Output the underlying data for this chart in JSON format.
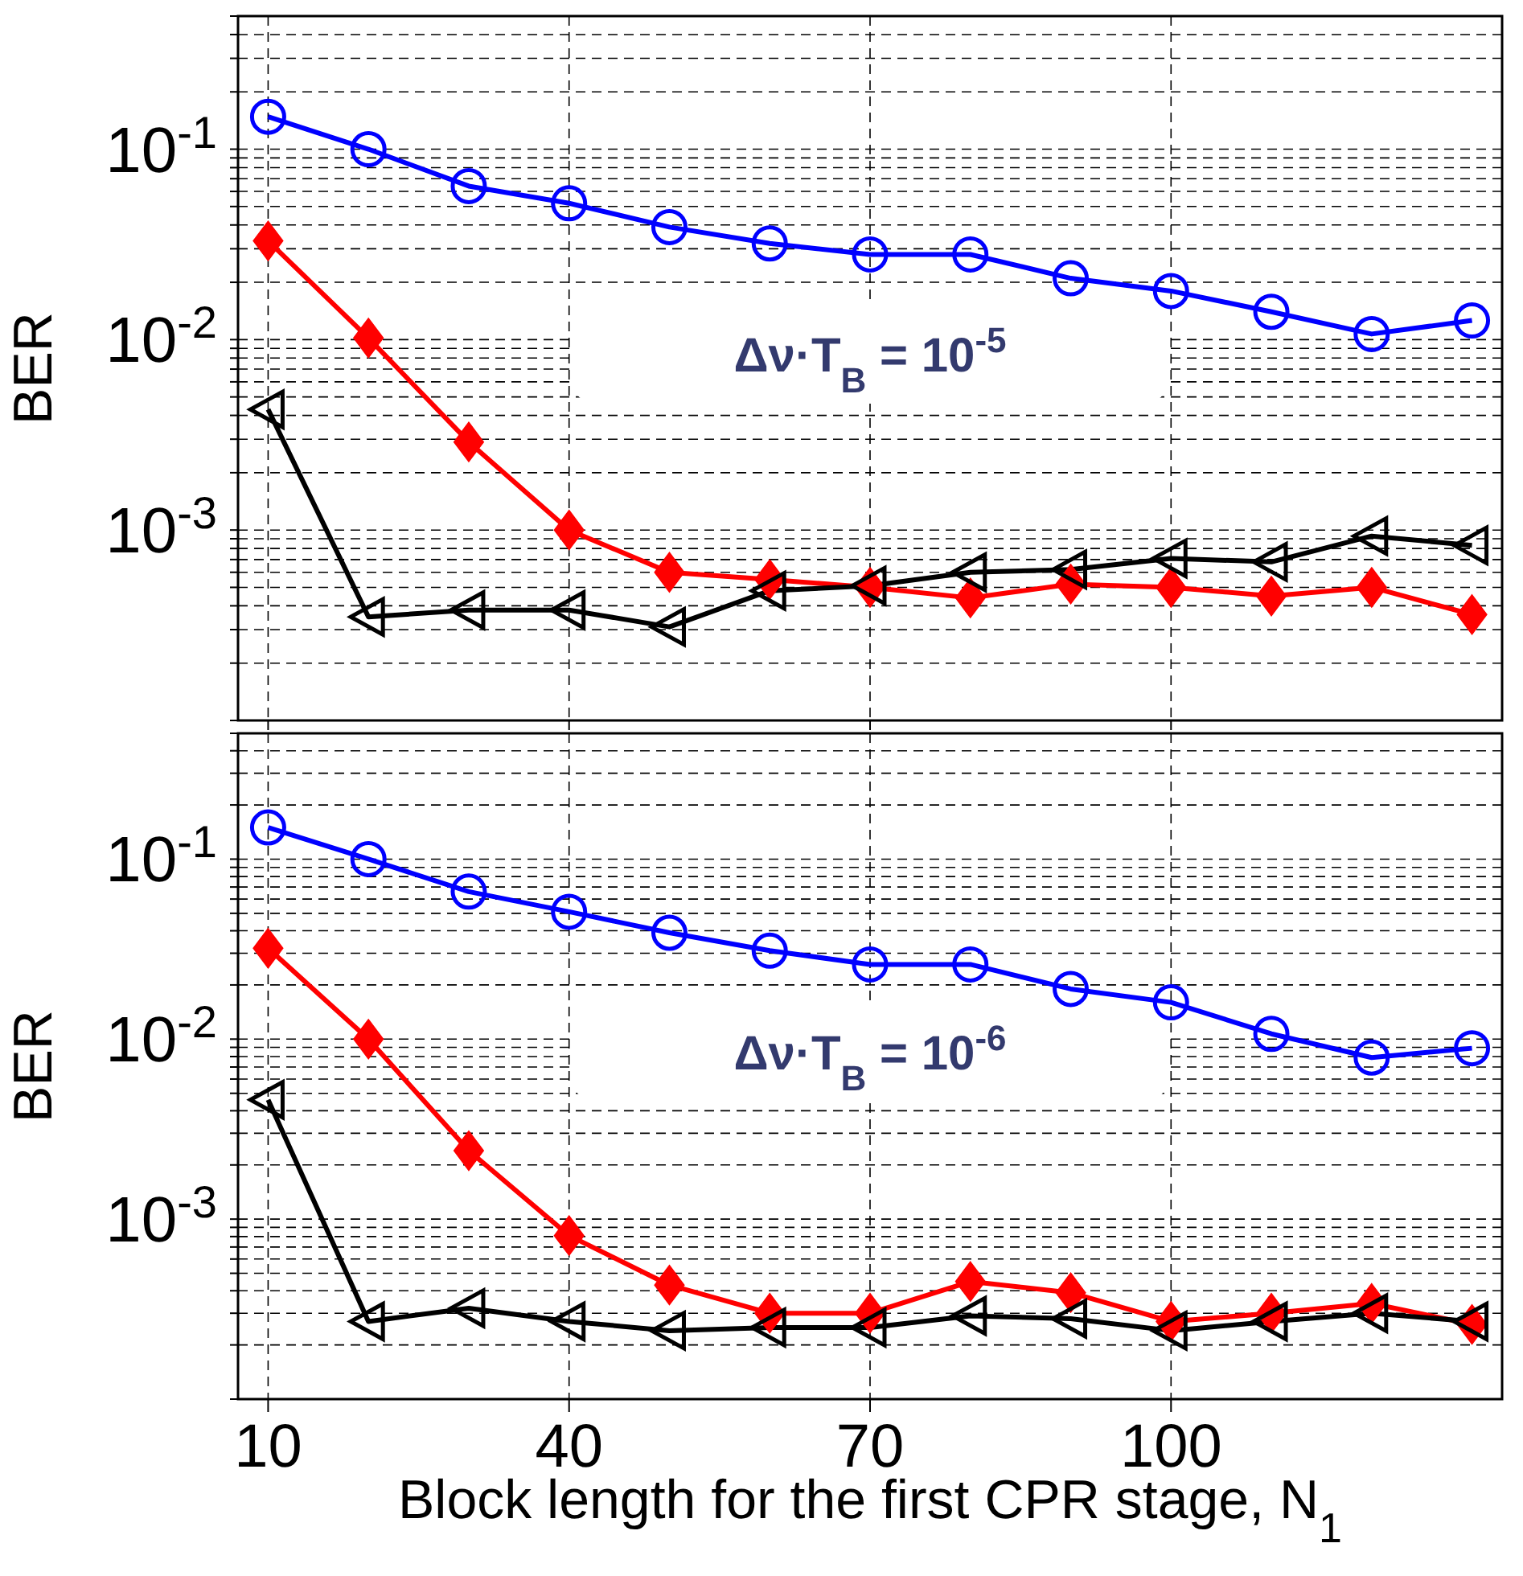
{
  "chart_data": [
    {
      "type": "line",
      "ylabel": "BER",
      "log": "y",
      "grid": true,
      "tick_labels": "y",
      "line_style": "solid",
      "annotations": [
        "Δν·T$_{B}$  = 10$^{-5}$"
      ],
      "x": [
        10,
        20,
        30,
        40,
        50,
        60,
        70,
        80,
        90,
        100,
        110,
        120,
        130
      ],
      "xlim": [
        7,
        133
      ],
      "xticks": [
        10,
        40,
        70,
        100
      ],
      "ylim": [
        0.0001,
        0.5
      ],
      "yticks": [
        {
          "value": 0.0001,
          "label": null
        },
        {
          "value": 0.0002,
          "label": null
        },
        {
          "value": 0.0003,
          "label": null
        },
        {
          "value": 0.0004,
          "label": null
        },
        {
          "value": 0.0005,
          "label": null
        },
        {
          "value": 0.0006,
          "label": null
        },
        {
          "value": 0.0007,
          "label": null
        },
        {
          "value": 0.0008,
          "label": null
        },
        {
          "value": 0.0009,
          "label": null
        },
        {
          "value": 0.001,
          "label": "10$^{-3}$"
        },
        {
          "value": 0.002,
          "label": null
        },
        {
          "value": 0.003,
          "label": null
        },
        {
          "value": 0.004,
          "label": null
        },
        {
          "value": 0.005,
          "label": null
        },
        {
          "value": 0.006,
          "label": null
        },
        {
          "value": 0.007,
          "label": null
        },
        {
          "value": 0.008,
          "label": null
        },
        {
          "value": 0.009,
          "label": null
        },
        {
          "value": 0.01,
          "label": "10$^{-2}$"
        },
        {
          "value": 0.02,
          "label": null
        },
        {
          "value": 0.03,
          "label": null
        },
        {
          "value": 0.04,
          "label": null
        },
        {
          "value": 0.05,
          "label": null
        },
        {
          "value": 0.06,
          "label": null
        },
        {
          "value": 0.07,
          "label": null
        },
        {
          "value": 0.08,
          "label": null
        },
        {
          "value": 0.09,
          "label": null
        },
        {
          "value": 0.1,
          "label": "10$^{-1}$"
        },
        {
          "value": 0.2,
          "label": null
        },
        {
          "value": 0.3,
          "label": null
        },
        {
          "value": 0.4,
          "label": null
        },
        {
          "value": 0.5,
          "label": null
        }
      ],
      "series": [
        {
          "color": "#0000ff",
          "marker": "circle",
          "values": [
            0.148,
            0.1,
            0.064,
            0.052,
            0.039,
            0.032,
            0.028,
            0.028,
            0.021,
            0.018,
            0.014,
            0.0107,
            0.0126
          ]
        },
        {
          "color": "#ff0000",
          "marker": "diamond",
          "values": [
            0.033,
            0.0102,
            0.0029,
            0.001,
            0.0006,
            0.00055,
            0.0005,
            0.00044,
            0.00052,
            0.0005,
            0.00045,
            0.0005,
            0.00036
          ]
        },
        {
          "color": "#000000",
          "marker": "triangle",
          "values": [
            0.0043,
            0.00035,
            0.00038,
            0.00038,
            0.00031,
            0.00048,
            0.00051,
            0.0006,
            0.00062,
            0.00071,
            0.00068,
            0.00093,
            0.00083
          ]
        }
      ]
    },
    {
      "type": "line",
      "ylabel": "BER",
      "xlabel": "Block length for the first CPR stage, N$_{1}$",
      "log": "y",
      "grid": true,
      "line_style": "solid",
      "annotations": [
        "Δν·T$_{B}$  = 10$^{-6}$"
      ],
      "x": [
        10,
        20,
        30,
        40,
        50,
        60,
        70,
        80,
        90,
        100,
        110,
        120,
        130
      ],
      "xlim": [
        7,
        133
      ],
      "xticks": [
        10,
        40,
        70,
        100
      ],
      "ylim": [
        0.0001,
        0.5
      ],
      "yticks": [
        {
          "value": 0.0001,
          "label": null
        },
        {
          "value": 0.0002,
          "label": null
        },
        {
          "value": 0.0003,
          "label": null
        },
        {
          "value": 0.0004,
          "label": null
        },
        {
          "value": 0.0005,
          "label": null
        },
        {
          "value": 0.0006,
          "label": null
        },
        {
          "value": 0.0007,
          "label": null
        },
        {
          "value": 0.0008,
          "label": null
        },
        {
          "value": 0.0009,
          "label": null
        },
        {
          "value": 0.001,
          "label": "10$^{-3}$"
        },
        {
          "value": 0.002,
          "label": null
        },
        {
          "value": 0.003,
          "label": null
        },
        {
          "value": 0.004,
          "label": null
        },
        {
          "value": 0.005,
          "label": null
        },
        {
          "value": 0.006,
          "label": null
        },
        {
          "value": 0.007,
          "label": null
        },
        {
          "value": 0.008,
          "label": null
        },
        {
          "value": 0.009,
          "label": null
        },
        {
          "value": 0.01,
          "label": "10$^{-2}$"
        },
        {
          "value": 0.02,
          "label": null
        },
        {
          "value": 0.03,
          "label": null
        },
        {
          "value": 0.04,
          "label": null
        },
        {
          "value": 0.05,
          "label": null
        },
        {
          "value": 0.06,
          "label": null
        },
        {
          "value": 0.07,
          "label": null
        },
        {
          "value": 0.08,
          "label": null
        },
        {
          "value": 0.09,
          "label": null
        },
        {
          "value": 0.1,
          "label": "10$^{-1}$"
        },
        {
          "value": 0.2,
          "label": null
        },
        {
          "value": 0.3,
          "label": null
        },
        {
          "value": 0.4,
          "label": null
        },
        {
          "value": 0.5,
          "label": null
        }
      ],
      "series": [
        {
          "color": "#0000ff",
          "marker": "circle",
          "values": [
            0.15,
            0.1,
            0.066,
            0.051,
            0.039,
            0.031,
            0.026,
            0.026,
            0.019,
            0.016,
            0.0107,
            0.0079,
            0.0089
          ]
        },
        {
          "color": "#ff0000",
          "marker": "diamond",
          "values": [
            0.032,
            0.01,
            0.0024,
            0.00081,
            0.00043,
            0.0003,
            0.0003,
            0.00045,
            0.00039,
            0.00027,
            0.0003,
            0.00034,
            0.00026
          ]
        },
        {
          "color": "#000000",
          "marker": "triangle",
          "values": [
            0.0046,
            0.00027,
            0.00032,
            0.00027,
            0.00024,
            0.00025,
            0.00025,
            0.00029,
            0.00028,
            0.00024,
            0.00027,
            0.0003,
            0.00027
          ]
        }
      ]
    }
  ]
}
